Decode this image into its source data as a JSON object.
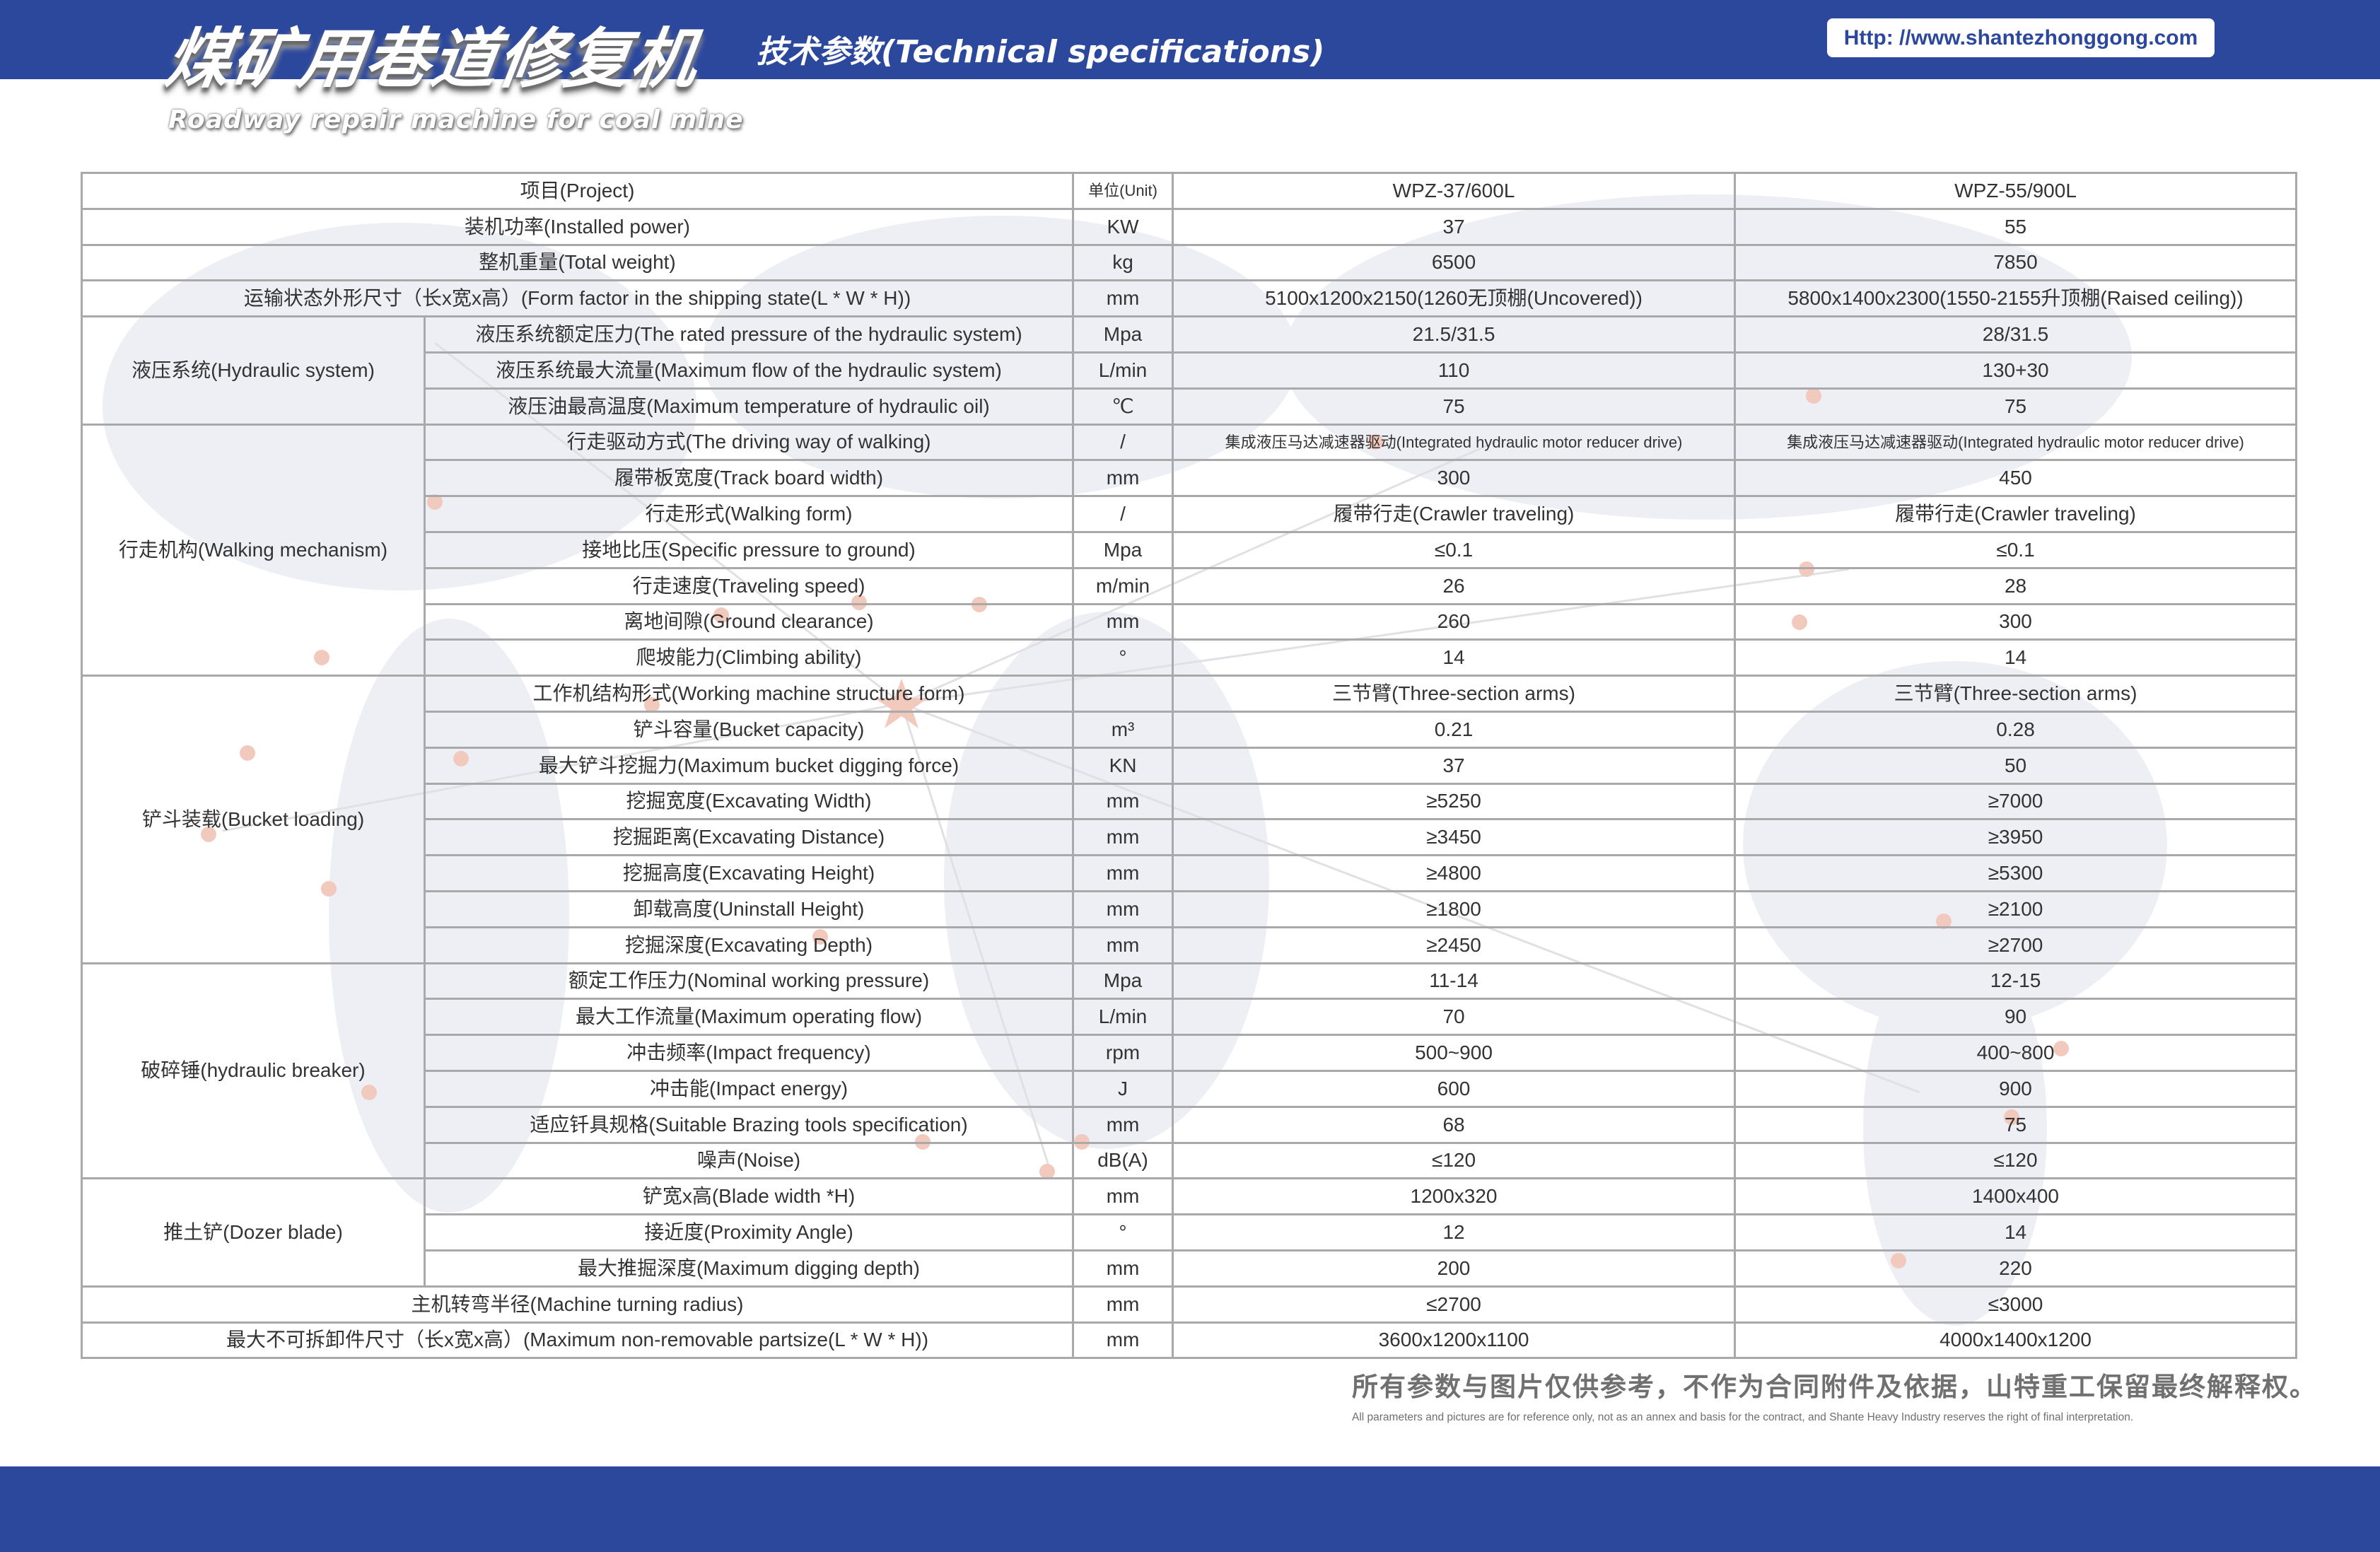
{
  "header": {
    "title_cn": "煤矿用巷道修复机",
    "title_en": "Roadway repair machine for coal mine",
    "subtitle": "技术参数(Technical specifications)",
    "url": "Http: //www.shantezhonggong.com",
    "brand_color": "#2c489c"
  },
  "table": {
    "headers": [
      "项目(Project)",
      "单位(Unit)",
      "WPZ-37/600L",
      "WPZ-55/900L"
    ],
    "rows": [
      {
        "label": "装机功率(Installed power)",
        "unit": "KW",
        "v1": "37",
        "v2": "55"
      },
      {
        "label": "整机重量(Total weight)",
        "unit": "kg",
        "v1": "6500",
        "v2": "7850"
      },
      {
        "label": "运输状态外形尺寸（长x宽x高）(Form factor in the shipping state(L * W * H))",
        "unit": "mm",
        "v1": "5100x1200x2150(1260无顶棚(Uncovered))",
        "v2": "5800x1400x2300(1550-2155升顶棚(Raised ceiling))"
      },
      {
        "group": "液压系统(Hydraulic system)",
        "span": 3,
        "label": "液压系统额定压力(The rated pressure of the hydraulic system)",
        "unit": "Mpa",
        "v1": "21.5/31.5",
        "v2": "28/31.5"
      },
      {
        "label": "液压系统最大流量(Maximum flow of the hydraulic system)",
        "unit": "L/min",
        "v1": "110",
        "v2": "130+30"
      },
      {
        "label": "液压油最高温度(Maximum temperature of hydraulic oil)",
        "unit": "℃",
        "v1": "75",
        "v2": "75"
      },
      {
        "group": "行走机构(Walking mechanism)",
        "span": 7,
        "label": "行走驱动方式(The driving way of walking)",
        "unit": "/",
        "v1": "集成液压马达减速器驱动(Integrated hydraulic motor reducer drive)",
        "v2": "集成液压马达减速器驱动(Integrated hydraulic motor reducer drive)",
        "small": true
      },
      {
        "label": "履带板宽度(Track board width)",
        "unit": "mm",
        "v1": "300",
        "v2": "450"
      },
      {
        "label": "行走形式(Walking form)",
        "unit": "/",
        "v1": "履带行走(Crawler traveling)",
        "v2": "履带行走(Crawler traveling)"
      },
      {
        "label": "接地比压(Specific pressure to ground)",
        "unit": "Mpa",
        "v1": "≤0.1",
        "v2": "≤0.1"
      },
      {
        "label": "行走速度(Traveling speed)",
        "unit": "m/min",
        "v1": "26",
        "v2": "28"
      },
      {
        "label": "离地间隙(Ground clearance)",
        "unit": "mm",
        "v1": "260",
        "v2": "300"
      },
      {
        "label": "爬坡能力(Climbing ability)",
        "unit": "°",
        "v1": "14",
        "v2": "14"
      },
      {
        "group": "铲斗装载(Bucket loading)",
        "span": 8,
        "label": "工作机结构形式(Working machine structure form)",
        "unit": "",
        "v1": "三节臂(Three-section arms)",
        "v2": "三节臂(Three-section arms)"
      },
      {
        "label": "铲斗容量(Bucket capacity)",
        "unit": "m³",
        "v1": "0.21",
        "v2": "0.28"
      },
      {
        "label": "最大铲斗挖掘力(Maximum bucket digging force)",
        "unit": "KN",
        "v1": "37",
        "v2": "50"
      },
      {
        "label": "挖掘宽度(Excavating Width)",
        "unit": "mm",
        "v1": "≥5250",
        "v2": "≥7000"
      },
      {
        "label": "挖掘距离(Excavating Distance)",
        "unit": "mm",
        "v1": "≥3450",
        "v2": "≥3950"
      },
      {
        "label": "挖掘高度(Excavating Height)",
        "unit": "mm",
        "v1": "≥4800",
        "v2": "≥5300"
      },
      {
        "label": "卸载高度(Uninstall Height)",
        "unit": "mm",
        "v1": "≥1800",
        "v2": "≥2100"
      },
      {
        "label": "挖掘深度(Excavating Depth)",
        "unit": "mm",
        "v1": "≥2450",
        "v2": "≥2700"
      },
      {
        "group": "破碎锤(hydraulic breaker)",
        "span": 6,
        "label": "额定工作压力(Nominal working pressure)",
        "unit": "Mpa",
        "v1": "11-14",
        "v2": "12-15"
      },
      {
        "label": "最大工作流量(Maximum operating flow)",
        "unit": "L/min",
        "v1": "70",
        "v2": "90"
      },
      {
        "label": "冲击频率(Impact frequency)",
        "unit": "rpm",
        "v1": "500~900",
        "v2": "400~800"
      },
      {
        "label": "冲击能(Impact energy)",
        "unit": "J",
        "v1": "600",
        "v2": "900"
      },
      {
        "label": "适应钎具规格(Suitable Brazing tools specification)",
        "unit": "mm",
        "v1": "68",
        "v2": "75"
      },
      {
        "label": "噪声(Noise)",
        "unit": "dB(A)",
        "v1": "≤120",
        "v2": "≤120"
      },
      {
        "group": "推土铲(Dozer blade)",
        "span": 3,
        "label": "铲宽x高(Blade width *H)",
        "unit": "mm",
        "v1": "1200x320",
        "v2": "1400x400"
      },
      {
        "label": "接近度(Proximity Angle)",
        "unit": "°",
        "v1": "12",
        "v2": "14"
      },
      {
        "label": "最大推掘深度(Maximum digging depth)",
        "unit": "mm",
        "v1": "200",
        "v2": "220"
      },
      {
        "label": "主机转弯半径(Machine turning radius)",
        "unit": "mm",
        "v1": "≤2700",
        "v2": "≤3000"
      },
      {
        "label": "最大不可拆卸件尺寸（长x宽x高）(Maximum non-removable partsize(L * W * H))",
        "unit": "mm",
        "v1": "3600x1200x1100",
        "v2": "4000x1400x1200"
      }
    ]
  },
  "watermark": "山特重工",
  "footer": {
    "cn": "所有参数与图片仅供参考，不作为合同附件及依据，山特重工保留最终解释权。",
    "en": "All parameters and pictures are for reference only, not as an annex and basis for the contract, and Shante Heavy Industry reserves the right of final interpretation."
  }
}
